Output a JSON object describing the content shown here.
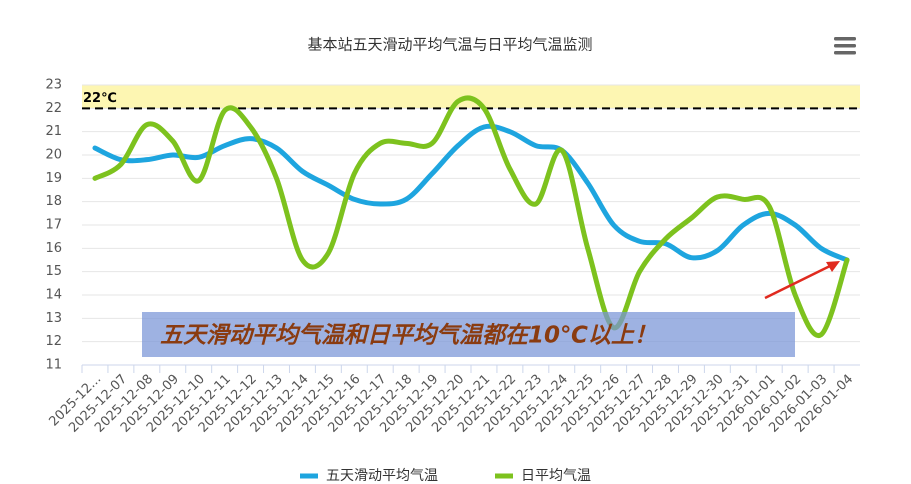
{
  "chart_data": {
    "type": "line",
    "title": "基本站五天滑动平均气温与日平均气温监测",
    "categories": [
      "2025-12...",
      "2025-12-07",
      "2025-12-08",
      "2025-12-09",
      "2025-12-10",
      "2025-12-11",
      "2025-12-12",
      "2025-12-13",
      "2025-12-14",
      "2025-12-15",
      "2025-12-16",
      "2025-12-17",
      "2025-12-18",
      "2025-12-19",
      "2025-12-20",
      "2025-12-21",
      "2025-12-22",
      "2025-12-23",
      "2025-12-24",
      "2025-12-25",
      "2025-12-26",
      "2025-12-27",
      "2025-12-28",
      "2025-12-29",
      "2025-12-30",
      "2025-12-31",
      "2026-01-01",
      "2026-01-02",
      "2026-01-03",
      "2026-01-04"
    ],
    "series": [
      {
        "name": "五天滑动平均气温",
        "color": "#1ea5df",
        "values": [
          20.3,
          19.8,
          19.8,
          20.0,
          19.9,
          20.4,
          20.7,
          20.3,
          19.3,
          18.7,
          18.1,
          17.9,
          18.1,
          19.2,
          20.4,
          21.2,
          21.0,
          20.4,
          20.2,
          18.8,
          17.0,
          16.3,
          16.2,
          15.6,
          15.9,
          17.0,
          17.5,
          17.0,
          16.0,
          15.5
        ]
      },
      {
        "name": "日平均气温",
        "color": "#7dc21e",
        "values": [
          19.0,
          19.6,
          21.3,
          20.6,
          18.9,
          21.9,
          21.2,
          19.0,
          15.5,
          15.8,
          19.2,
          20.5,
          20.5,
          20.5,
          22.3,
          22.0,
          19.4,
          17.9,
          20.2,
          16.0,
          12.6,
          15.0,
          16.4,
          17.3,
          18.2,
          18.1,
          17.8,
          14.0,
          12.3,
          15.5
        ]
      }
    ],
    "ylim": [
      11,
      23
    ],
    "yticks": [
      11,
      12,
      13,
      14,
      15,
      16,
      17,
      18,
      19,
      20,
      21,
      22,
      23
    ],
    "grid": true,
    "plot_band": {
      "from": 22,
      "to": 23,
      "color": "#fdf6b2"
    },
    "reference_line": {
      "value": 22,
      "label": "22℃"
    },
    "annotation": "五天滑动平均气温和日平均气温都在10℃以上！"
  }
}
